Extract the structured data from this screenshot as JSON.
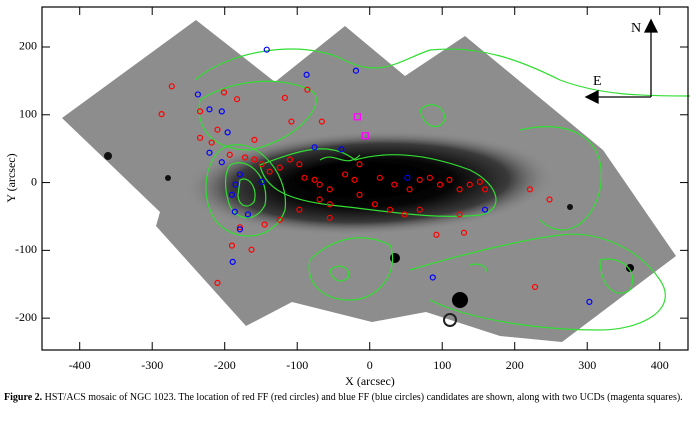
{
  "chart_data": {
    "type": "scatter",
    "xlabel": "X (arcsec)",
    "ylabel": "Y (arcsec)",
    "xlim": [
      -452,
      439
    ],
    "ylim": [
      -247,
      259
    ],
    "xticks": [
      -400,
      -300,
      -200,
      -100,
      0,
      100,
      200,
      300,
      400
    ],
    "yticks": [
      -200,
      -100,
      0,
      100,
      200
    ],
    "annotations": [
      "N",
      "E"
    ],
    "series": [
      {
        "color": "#ff0000",
        "marker": "circle",
        "x": [
          -273,
          -287,
          -234,
          -201,
          -183,
          -234,
          -218,
          -193,
          -172,
          -159,
          -149,
          -138,
          -124,
          -110,
          -97,
          -90,
          -76,
          -69,
          -55,
          -34,
          -21,
          -14,
          14,
          34,
          55,
          69,
          83,
          97,
          110,
          124,
          138,
          152,
          159,
          69,
          48,
          28,
          7,
          -14,
          -55,
          -69,
          -97,
          -124,
          -145,
          -55,
          124,
          92,
          130,
          -86,
          -117,
          -108,
          -66,
          -179,
          -190,
          -163,
          -210,
          228,
          221,
          248,
          -210,
          -159
        ],
        "y": [
          142,
          101,
          105,
          133,
          123,
          66,
          59,
          41,
          37,
          34,
          27,
          16,
          22,
          34,
          27,
          7,
          4,
          -3,
          -10,
          12,
          4,
          27,
          7,
          -3,
          -10,
          4,
          7,
          -3,
          4,
          -10,
          -3,
          1,
          -10,
          -40,
          -47,
          -40,
          -32,
          -18,
          -32,
          -25,
          -40,
          -55,
          -62,
          -52,
          -47,
          -77,
          -74,
          137,
          125,
          90,
          90,
          -66,
          -93,
          -99,
          -148,
          -154,
          -10,
          -25,
          78,
          63
        ]
      },
      {
        "color": "#0000ff",
        "marker": "circle",
        "x": [
          -142,
          -87,
          -237,
          -221,
          -196,
          -221,
          -204,
          -185,
          -179,
          -190,
          -149,
          -168,
          -186,
          -179,
          -189,
          -76,
          52,
          159,
          -19,
          -39,
          87,
          303,
          -204
        ],
        "y": [
          196,
          159,
          130,
          108,
          74,
          44,
          30,
          -3,
          12,
          -18,
          1,
          -47,
          -43,
          -69,
          -117,
          52,
          7,
          -40,
          165,
          49,
          -140,
          -176,
          105
        ]
      },
      {
        "color": "#ff00ff",
        "marker": "square",
        "x": [
          -17,
          -6
        ],
        "y": [
          97,
          69
        ]
      }
    ]
  },
  "caption": {
    "label": "Figure 2.",
    "text": "HST/ACS mosaic of NGC 1023. The location of red FF (red circles) and blue FF (blue circles) candidates are shown, along with two UCDs (magenta squares)."
  }
}
